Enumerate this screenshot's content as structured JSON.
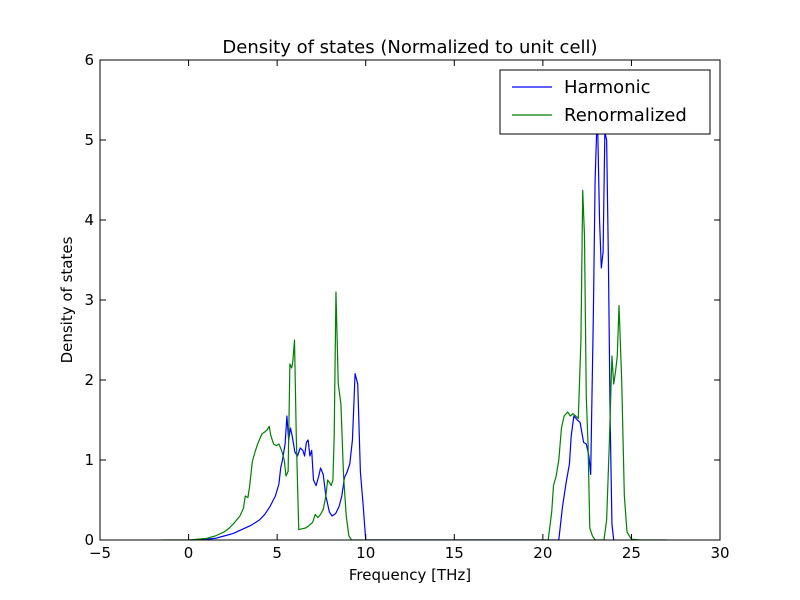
{
  "chart_data": {
    "type": "line",
    "title": "Density of states (Normalized to unit cell)",
    "xlabel": "Frequency [THz]",
    "ylabel": "Density of states",
    "xlim": [
      -5,
      30
    ],
    "ylim": [
      0,
      6
    ],
    "xticks": [
      "−5",
      "0",
      "5",
      "10",
      "15",
      "20",
      "25",
      "30"
    ],
    "yticks": [
      "0",
      "1",
      "2",
      "3",
      "4",
      "5",
      "6"
    ],
    "grid": false,
    "legend": "top-right",
    "series": [
      {
        "name": "Harmonic",
        "color": "#0000ff",
        "points": [
          [
            0.5,
            0
          ],
          [
            1.0,
            0.01
          ],
          [
            1.5,
            0.02
          ],
          [
            2.0,
            0.05
          ],
          [
            2.5,
            0.08
          ],
          [
            3.0,
            0.13
          ],
          [
            3.5,
            0.18
          ],
          [
            4.0,
            0.25
          ],
          [
            4.3,
            0.32
          ],
          [
            4.6,
            0.42
          ],
          [
            4.9,
            0.55
          ],
          [
            5.1,
            0.7
          ],
          [
            5.2,
            0.9
          ],
          [
            5.3,
            1.0
          ],
          [
            5.45,
            1.2
          ],
          [
            5.55,
            1.55
          ],
          [
            5.65,
            1.25
          ],
          [
            5.75,
            1.4
          ],
          [
            5.85,
            1.3
          ],
          [
            6.0,
            1.1
          ],
          [
            6.15,
            1.05
          ],
          [
            6.3,
            1.15
          ],
          [
            6.45,
            1.12
          ],
          [
            6.55,
            1.05
          ],
          [
            6.65,
            1.22
          ],
          [
            6.75,
            1.25
          ],
          [
            6.85,
            1.05
          ],
          [
            6.95,
            1.12
          ],
          [
            7.05,
            0.75
          ],
          [
            7.2,
            0.68
          ],
          [
            7.35,
            0.8
          ],
          [
            7.45,
            0.9
          ],
          [
            7.6,
            0.82
          ],
          [
            7.75,
            0.55
          ],
          [
            7.95,
            0.35
          ],
          [
            8.1,
            0.3
          ],
          [
            8.3,
            0.33
          ],
          [
            8.5,
            0.42
          ],
          [
            8.65,
            0.55
          ],
          [
            8.8,
            0.78
          ],
          [
            8.95,
            0.85
          ],
          [
            9.1,
            0.95
          ],
          [
            9.25,
            1.25
          ],
          [
            9.4,
            2.08
          ],
          [
            9.55,
            1.95
          ],
          [
            9.7,
            0.85
          ],
          [
            9.85,
            0.45
          ],
          [
            10.0,
            0
          ],
          [
            20.9,
            0
          ],
          [
            21.1,
            0.4
          ],
          [
            21.3,
            0.7
          ],
          [
            21.5,
            0.95
          ],
          [
            21.6,
            1.3
          ],
          [
            21.75,
            1.55
          ],
          [
            21.95,
            1.5
          ],
          [
            22.1,
            1.47
          ],
          [
            22.3,
            1.22
          ],
          [
            22.45,
            1.2
          ],
          [
            22.6,
            1.05
          ],
          [
            22.7,
            0.82
          ],
          [
            22.75,
            1.5
          ],
          [
            22.85,
            2.8
          ],
          [
            22.95,
            4.5
          ],
          [
            23.05,
            5.2
          ],
          [
            23.1,
            5.1
          ],
          [
            23.2,
            4.0
          ],
          [
            23.3,
            3.4
          ],
          [
            23.4,
            3.6
          ],
          [
            23.5,
            5.1
          ],
          [
            23.6,
            5.0
          ],
          [
            23.7,
            3.5
          ],
          [
            23.8,
            1.5
          ],
          [
            23.9,
            0.2
          ],
          [
            24.0,
            0
          ]
        ]
      },
      {
        "name": "Renormalized",
        "color": "#008000",
        "points": [
          [
            -1.5,
            0
          ],
          [
            -0.5,
            0
          ],
          [
            0.0,
            0.0
          ],
          [
            0.5,
            0.01
          ],
          [
            1.0,
            0.02
          ],
          [
            1.5,
            0.05
          ],
          [
            2.0,
            0.1
          ],
          [
            2.3,
            0.15
          ],
          [
            2.6,
            0.22
          ],
          [
            2.9,
            0.3
          ],
          [
            3.1,
            0.4
          ],
          [
            3.2,
            0.55
          ],
          [
            3.35,
            0.53
          ],
          [
            3.45,
            0.68
          ],
          [
            3.6,
            0.98
          ],
          [
            3.75,
            1.1
          ],
          [
            3.9,
            1.2
          ],
          [
            4.05,
            1.28
          ],
          [
            4.15,
            1.33
          ],
          [
            4.3,
            1.35
          ],
          [
            4.45,
            1.38
          ],
          [
            4.55,
            1.42
          ],
          [
            4.65,
            1.3
          ],
          [
            4.8,
            1.2
          ],
          [
            4.95,
            1.18
          ],
          [
            5.1,
            1.2
          ],
          [
            5.25,
            1.12
          ],
          [
            5.4,
            1.0
          ],
          [
            5.5,
            0.8
          ],
          [
            5.62,
            0.86
          ],
          [
            5.72,
            2.2
          ],
          [
            5.82,
            2.15
          ],
          [
            5.88,
            2.22
          ],
          [
            5.98,
            2.5
          ],
          [
            6.08,
            1.3
          ],
          [
            6.22,
            0.13
          ],
          [
            6.4,
            0.14
          ],
          [
            6.6,
            0.15
          ],
          [
            6.8,
            0.18
          ],
          [
            7.0,
            0.22
          ],
          [
            7.15,
            0.32
          ],
          [
            7.3,
            0.28
          ],
          [
            7.45,
            0.32
          ],
          [
            7.6,
            0.38
          ],
          [
            7.75,
            0.55
          ],
          [
            7.85,
            0.75
          ],
          [
            7.95,
            0.72
          ],
          [
            8.05,
            0.68
          ],
          [
            8.15,
            0.75
          ],
          [
            8.22,
            1.3
          ],
          [
            8.32,
            3.1
          ],
          [
            8.45,
            1.95
          ],
          [
            8.6,
            1.7
          ],
          [
            8.75,
            0.8
          ],
          [
            8.9,
            0.3
          ],
          [
            9.05,
            0.05
          ],
          [
            9.2,
            0
          ],
          [
            20.3,
            0
          ],
          [
            20.5,
            0.35
          ],
          [
            20.6,
            0.68
          ],
          [
            20.75,
            0.8
          ],
          [
            20.9,
            1.0
          ],
          [
            21.05,
            1.4
          ],
          [
            21.2,
            1.55
          ],
          [
            21.4,
            1.6
          ],
          [
            21.55,
            1.55
          ],
          [
            21.7,
            1.58
          ],
          [
            21.85,
            1.55
          ],
          [
            22.0,
            1.52
          ],
          [
            22.15,
            2.5
          ],
          [
            22.25,
            4.37
          ],
          [
            22.35,
            3.8
          ],
          [
            22.45,
            1.8
          ],
          [
            22.55,
            1.2
          ],
          [
            22.65,
            0.15
          ],
          [
            22.8,
            0.05
          ],
          [
            22.95,
            0.0
          ],
          [
            23.45,
            0.0
          ],
          [
            23.6,
            0.25
          ],
          [
            23.75,
            1.2
          ],
          [
            23.9,
            2.3
          ],
          [
            24.0,
            1.95
          ],
          [
            24.1,
            2.1
          ],
          [
            24.2,
            2.3
          ],
          [
            24.3,
            2.93
          ],
          [
            24.45,
            2.0
          ],
          [
            24.6,
            0.55
          ],
          [
            24.75,
            0.1
          ],
          [
            25.0,
            0.01
          ],
          [
            25.5,
            0
          ],
          [
            27.0,
            0
          ]
        ]
      }
    ]
  }
}
